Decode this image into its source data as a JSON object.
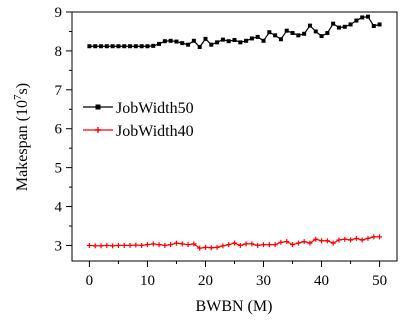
{
  "chart_data": {
    "type": "line",
    "xlabel": "BWBN (M)",
    "ylabel": "Makespan (10",
    "ylabel_sup": "7",
    "ylabel_tail": "s)",
    "xlim": [
      -3,
      53
    ],
    "ylim": [
      2.6,
      9.0
    ],
    "xticks": [
      0,
      10,
      20,
      30,
      40,
      50
    ],
    "yticks": [
      3,
      4,
      5,
      6,
      7,
      8,
      9
    ],
    "grid": false,
    "legend_position": "upper-left",
    "series": [
      {
        "name": "JobWidth50",
        "color": "#000000",
        "marker": "square",
        "x": [
          0,
          1,
          2,
          3,
          4,
          5,
          6,
          7,
          8,
          9,
          10,
          11,
          12,
          13,
          14,
          15,
          16,
          17,
          18,
          19,
          20,
          21,
          22,
          23,
          24,
          25,
          26,
          27,
          28,
          29,
          30,
          31,
          32,
          33,
          34,
          35,
          36,
          37,
          38,
          39,
          40,
          41,
          42,
          43,
          44,
          45,
          46,
          47,
          48,
          49,
          50
        ],
        "values": [
          8.12,
          8.12,
          8.12,
          8.12,
          8.12,
          8.12,
          8.12,
          8.12,
          8.12,
          8.12,
          8.12,
          8.13,
          8.18,
          8.25,
          8.26,
          8.24,
          8.2,
          8.16,
          8.26,
          8.1,
          8.31,
          8.16,
          8.22,
          8.29,
          8.25,
          8.28,
          8.22,
          8.26,
          8.32,
          8.36,
          8.26,
          8.48,
          8.4,
          8.3,
          8.52,
          8.46,
          8.4,
          8.44,
          8.65,
          8.5,
          8.38,
          8.46,
          8.7,
          8.6,
          8.62,
          8.68,
          8.78,
          8.86,
          8.88,
          8.64,
          8.68
        ]
      },
      {
        "name": "JobWidth40",
        "color": "#ff0000",
        "marker": "plus",
        "x": [
          0,
          1,
          2,
          3,
          4,
          5,
          6,
          7,
          8,
          9,
          10,
          11,
          12,
          13,
          14,
          15,
          16,
          17,
          18,
          19,
          20,
          21,
          22,
          23,
          24,
          25,
          26,
          27,
          28,
          29,
          30,
          31,
          32,
          33,
          34,
          35,
          36,
          37,
          38,
          39,
          40,
          41,
          42,
          43,
          44,
          45,
          46,
          47,
          48,
          49,
          50
        ],
        "values": [
          3.0,
          2.99,
          2.99,
          3.0,
          2.99,
          3.0,
          3.0,
          3.0,
          3.01,
          3.0,
          3.02,
          3.04,
          3.02,
          3.0,
          3.02,
          3.06,
          3.04,
          3.02,
          3.04,
          2.93,
          2.95,
          2.94,
          2.95,
          2.99,
          3.02,
          3.06,
          3.0,
          3.04,
          3.04,
          3.0,
          3.02,
          3.02,
          3.02,
          3.08,
          3.1,
          3.02,
          3.06,
          3.1,
          3.06,
          3.16,
          3.12,
          3.12,
          3.06,
          3.14,
          3.16,
          3.14,
          3.18,
          3.14,
          3.18,
          3.22,
          3.22
        ]
      }
    ]
  }
}
